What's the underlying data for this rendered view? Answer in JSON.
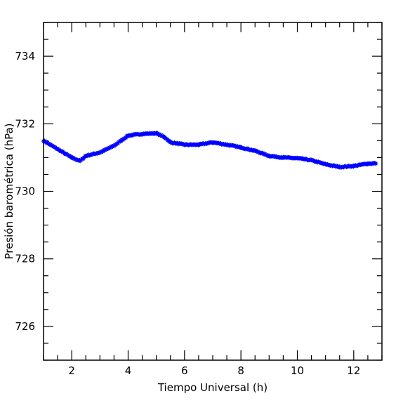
{
  "chart_data": {
    "type": "scatter",
    "title": "",
    "xlabel": "Tiempo Universal (h)",
    "ylabel": "Presión barométrica (hPa)",
    "xlim": [
      1.0,
      13.0
    ],
    "ylim": [
      725.0,
      735.0
    ],
    "x_ticks": [
      2,
      4,
      6,
      8,
      10,
      12
    ],
    "y_ticks": [
      726,
      728,
      730,
      732,
      734
    ],
    "x_tick_labels": [
      "2",
      "4",
      "6",
      "8",
      "10",
      "12"
    ],
    "y_tick_labels": [
      "726",
      "728",
      "730",
      "732",
      "734"
    ],
    "grid": false,
    "marker": "asterisk",
    "color": "#0000ff",
    "series": [
      {
        "name": "",
        "x": [
          1.0,
          1.5,
          2.0,
          2.3,
          2.5,
          3.0,
          3.5,
          4.0,
          4.5,
          5.0,
          5.3,
          5.5,
          6.0,
          6.5,
          7.0,
          7.5,
          8.0,
          8.5,
          9.0,
          9.5,
          10.0,
          10.5,
          11.0,
          11.5,
          12.0,
          12.5,
          12.8
        ],
        "y": [
          731.5,
          731.25,
          731.0,
          730.9,
          731.05,
          731.15,
          731.35,
          731.65,
          731.7,
          731.72,
          731.6,
          731.45,
          731.38,
          731.38,
          731.45,
          731.38,
          731.3,
          731.2,
          731.05,
          731.0,
          730.98,
          730.92,
          730.8,
          730.72,
          730.75,
          730.82,
          730.83
        ]
      }
    ]
  }
}
